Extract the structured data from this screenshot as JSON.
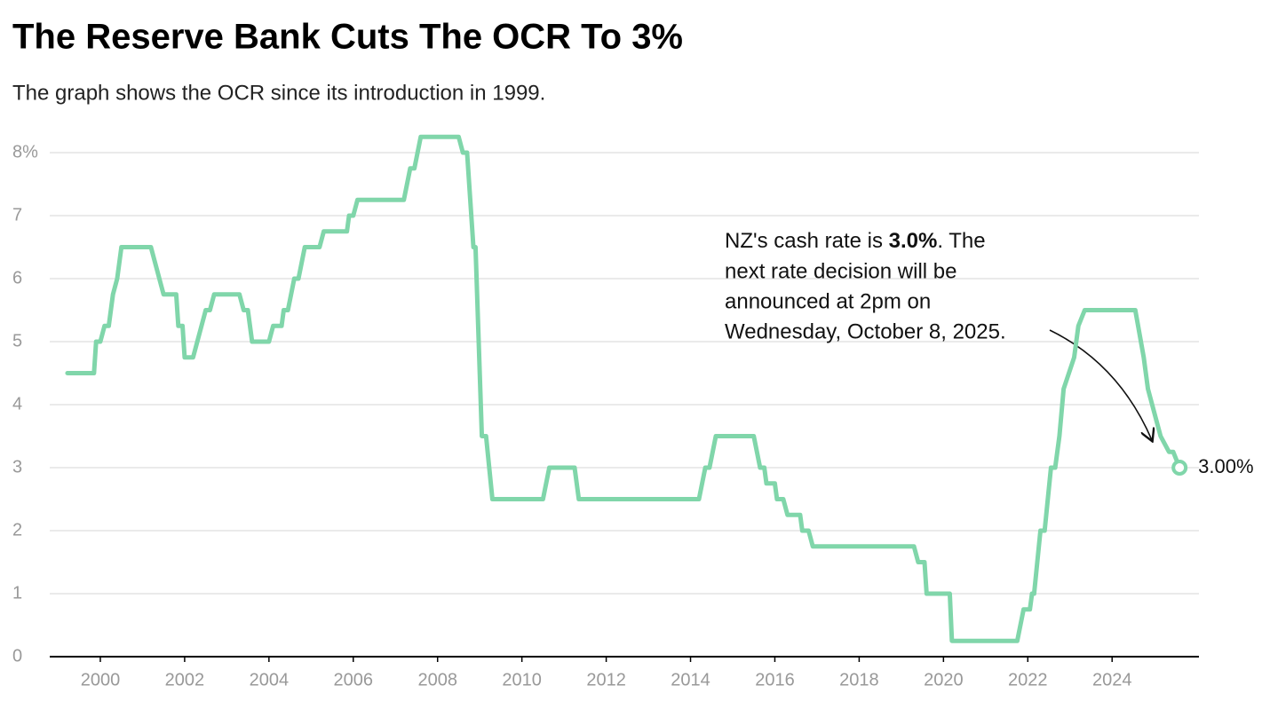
{
  "chart_data": {
    "type": "line",
    "title": "The Reserve Bank Cuts The OCR To 3%",
    "subtitle": "The graph shows the OCR since its introduction in 1999.",
    "x": [
      1999.22,
      1999.85,
      1999.9,
      2000.0,
      2000.1,
      2000.2,
      2000.3,
      2000.4,
      2000.5,
      2001.2,
      2001.5,
      2001.8,
      2001.85,
      2001.95,
      2002.0,
      2002.2,
      2002.4,
      2002.5,
      2002.6,
      2002.7,
      2003.3,
      2003.4,
      2003.5,
      2003.6,
      2004.0,
      2004.1,
      2004.3,
      2004.35,
      2004.45,
      2004.6,
      2004.7,
      2004.85,
      2005.2,
      2005.3,
      2005.85,
      2005.9,
      2006.0,
      2006.1,
      2007.2,
      2007.35,
      2007.45,
      2007.6,
      2008.5,
      2008.6,
      2008.7,
      2008.75,
      2008.85,
      2008.9,
      2009.05,
      2009.15,
      2009.3,
      2010.5,
      2010.65,
      2011.25,
      2011.35,
      2014.2,
      2014.35,
      2014.45,
      2014.6,
      2015.5,
      2015.65,
      2015.75,
      2015.8,
      2016.0,
      2016.05,
      2016.2,
      2016.3,
      2016.6,
      2016.65,
      2016.8,
      2016.9,
      2019.3,
      2019.4,
      2019.55,
      2019.6,
      2020.15,
      2020.2,
      2021.75,
      2021.9,
      2022.05,
      2022.1,
      2022.15,
      2022.3,
      2022.4,
      2022.55,
      2022.65,
      2022.75,
      2022.85,
      2023.1,
      2023.2,
      2023.35,
      2024.55,
      2024.75,
      2024.85,
      2025.15,
      2025.35,
      2025.45,
      2025.6
    ],
    "values": [
      4.5,
      4.5,
      5.0,
      5.0,
      5.25,
      5.25,
      5.75,
      6.0,
      6.5,
      6.5,
      5.75,
      5.75,
      5.25,
      5.25,
      4.75,
      4.75,
      5.25,
      5.5,
      5.5,
      5.75,
      5.75,
      5.5,
      5.5,
      5.0,
      5.0,
      5.25,
      5.25,
      5.5,
      5.5,
      6.0,
      6.0,
      6.5,
      6.5,
      6.75,
      6.75,
      7.0,
      7.0,
      7.25,
      7.25,
      7.75,
      7.75,
      8.25,
      8.25,
      8.0,
      8.0,
      7.5,
      6.5,
      6.5,
      3.5,
      3.5,
      2.5,
      2.5,
      3.0,
      3.0,
      2.5,
      2.5,
      3.0,
      3.0,
      3.5,
      3.5,
      3.0,
      3.0,
      2.75,
      2.75,
      2.5,
      2.5,
      2.25,
      2.25,
      2.0,
      2.0,
      1.75,
      1.75,
      1.5,
      1.5,
      1.0,
      1.0,
      0.25,
      0.25,
      0.75,
      0.75,
      1.0,
      1.0,
      2.0,
      2.0,
      3.0,
      3.0,
      3.5,
      4.25,
      4.75,
      5.25,
      5.5,
      5.5,
      4.75,
      4.25,
      3.5,
      3.25,
      3.25,
      3.0
    ],
    "color": "#80d6aa",
    "xlim": [
      1998.8,
      2026.06
    ],
    "xticks": [
      2000,
      2002,
      2004,
      2006,
      2008,
      2010,
      2012,
      2014,
      2016,
      2018,
      2020,
      2022,
      2024
    ],
    "ylim": [
      0,
      8
    ],
    "yticks": [
      0,
      1,
      2,
      3,
      4,
      5,
      6,
      7,
      {
        "value": 8,
        "label": "8%"
      }
    ],
    "grid": true,
    "end_label": "3.00%",
    "annotation": {
      "before": "NZ's cash rate is ",
      "highlight": "3.0%",
      "after_lines": [
        ". The",
        "next rate decision will be",
        "announced at 2pm on",
        "Wednesday, October 8, 2025."
      ]
    }
  }
}
